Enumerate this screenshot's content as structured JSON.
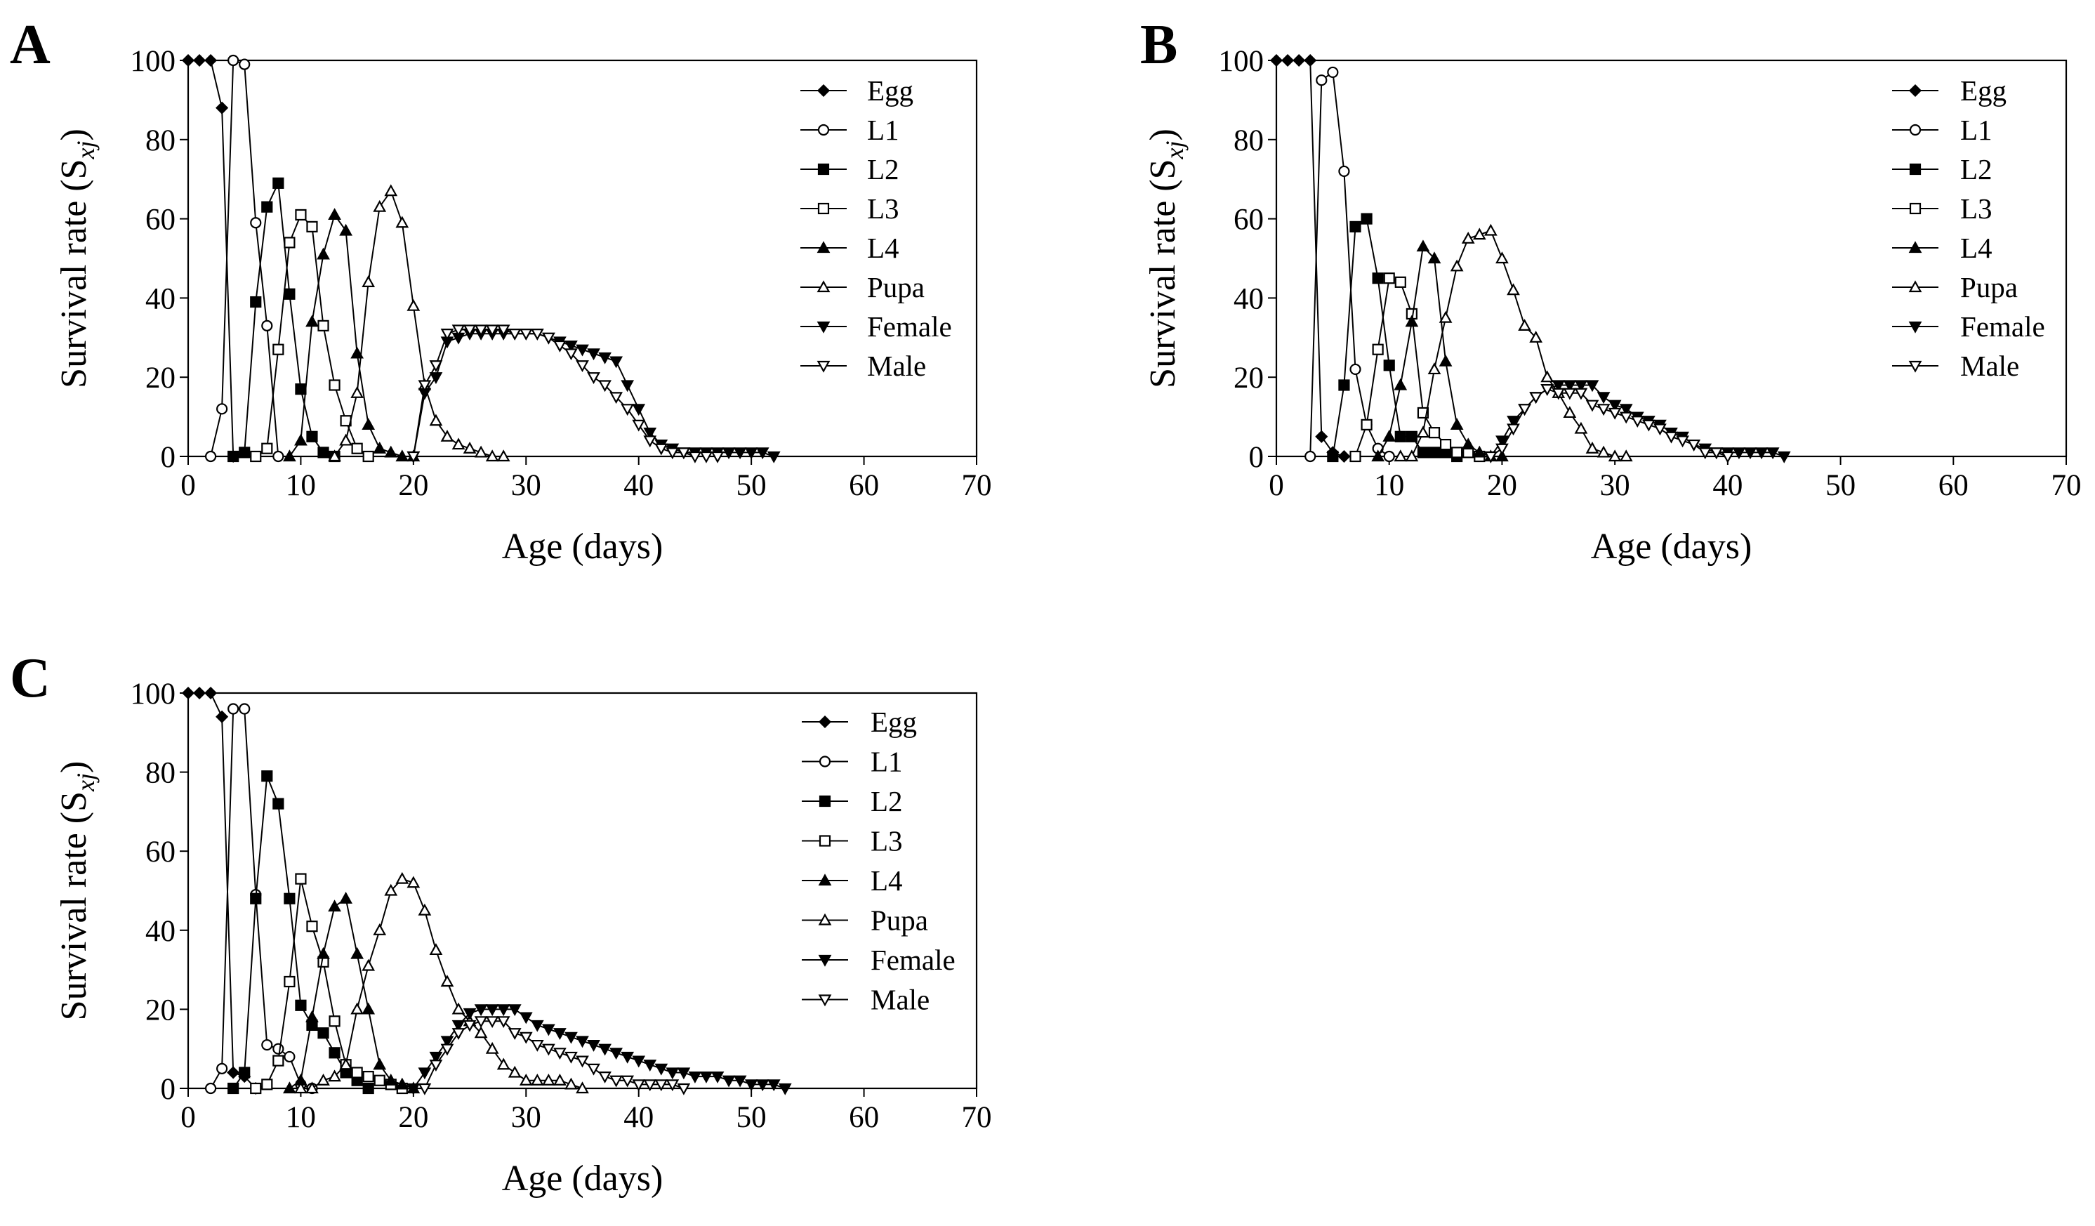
{
  "figure": {
    "legend_entries": [
      "Egg",
      "L1",
      "L2",
      "L3",
      "L4",
      "Pupa",
      "Female",
      "Male"
    ],
    "legend_markers": [
      "filled-diamond",
      "open-circle",
      "filled-square",
      "open-square",
      "filled-triangle",
      "open-triangle",
      "filled-down-triangle",
      "open-down-triangle"
    ]
  },
  "chart_data": [
    {
      "type": "line",
      "panel": "A",
      "xlabel": "Age (days)",
      "ylabel": "Survival rate (S",
      "ylabel_sub": "xj",
      "ylabel_close": ")",
      "xlim": [
        0,
        70
      ],
      "ylim": [
        0,
        100
      ],
      "xticks": [
        0,
        10,
        20,
        30,
        40,
        50,
        60,
        70
      ],
      "yticks": [
        0,
        20,
        40,
        60,
        80,
        100
      ],
      "legend_position": "top-right",
      "series": [
        {
          "name": "Egg",
          "marker": "filled-diamond",
          "x": [
            0,
            1,
            2,
            3,
            4
          ],
          "y": [
            100,
            100,
            100,
            88,
            0
          ]
        },
        {
          "name": "L1",
          "marker": "open-circle",
          "x": [
            2,
            3,
            4,
            5,
            6,
            7,
            8
          ],
          "y": [
            0,
            12,
            100,
            99,
            59,
            33,
            0
          ]
        },
        {
          "name": "L2",
          "marker": "filled-square",
          "x": [
            4,
            5,
            6,
            7,
            8,
            9,
            10,
            11,
            12,
            13
          ],
          "y": [
            0,
            1,
            39,
            63,
            69,
            41,
            17,
            5,
            1,
            0
          ]
        },
        {
          "name": "L3",
          "marker": "open-square",
          "x": [
            6,
            7,
            8,
            9,
            10,
            11,
            12,
            13,
            14,
            15,
            16
          ],
          "y": [
            0,
            2,
            27,
            54,
            61,
            58,
            33,
            18,
            9,
            2,
            0
          ]
        },
        {
          "name": "L4",
          "marker": "filled-triangle",
          "x": [
            9,
            10,
            11,
            12,
            13,
            14,
            15,
            16,
            17,
            18,
            19,
            20
          ],
          "y": [
            0,
            4,
            34,
            51,
            61,
            57,
            26,
            8,
            2,
            1,
            0,
            0
          ]
        },
        {
          "name": "Pupa",
          "marker": "open-triangle",
          "x": [
            13,
            14,
            15,
            16,
            17,
            18,
            19,
            20,
            21,
            22,
            23,
            24,
            25,
            26,
            27,
            28
          ],
          "y": [
            0,
            4,
            16,
            44,
            63,
            67,
            59,
            38,
            18,
            9,
            5,
            3,
            2,
            1,
            0,
            0
          ]
        },
        {
          "name": "Female",
          "marker": "filled-down-triangle",
          "x": [
            20,
            21,
            22,
            23,
            24,
            25,
            26,
            27,
            28,
            29,
            30,
            31,
            32,
            33,
            34,
            35,
            36,
            37,
            38,
            39,
            40,
            41,
            42,
            43,
            44,
            45,
            46,
            47,
            48,
            49,
            50,
            51,
            52
          ],
          "y": [
            0,
            16,
            20,
            29,
            30,
            31,
            31,
            31,
            31,
            31,
            31,
            31,
            30,
            29,
            28,
            27,
            26,
            25,
            24,
            18,
            12,
            6,
            3,
            2,
            1,
            1,
            1,
            1,
            1,
            1,
            1,
            1,
            0
          ]
        },
        {
          "name": "Male",
          "marker": "open-down-triangle",
          "x": [
            20,
            21,
            22,
            23,
            24,
            25,
            26,
            27,
            28,
            29,
            30,
            31,
            32,
            33,
            34,
            35,
            36,
            37,
            38,
            39,
            40,
            41,
            42,
            43,
            44,
            45,
            46,
            47
          ],
          "y": [
            0,
            18,
            23,
            31,
            32,
            32,
            32,
            32,
            32,
            31,
            31,
            31,
            30,
            28,
            26,
            23,
            20,
            18,
            15,
            12,
            8,
            4,
            2,
            1,
            1,
            0,
            0,
            0
          ]
        }
      ]
    },
    {
      "type": "line",
      "panel": "B",
      "xlabel": "Age (days)",
      "ylabel": "Survival rate  (S",
      "ylabel_sub": "xj",
      "ylabel_close": ")",
      "xlim": [
        0,
        70
      ],
      "ylim": [
        0,
        100
      ],
      "xticks": [
        0,
        10,
        20,
        30,
        40,
        50,
        60,
        70
      ],
      "yticks": [
        0,
        20,
        40,
        60,
        80,
        100
      ],
      "legend_position": "top-right",
      "series": [
        {
          "name": "Egg",
          "marker": "filled-diamond",
          "x": [
            0,
            1,
            2,
            3,
            4,
            5,
            6
          ],
          "y": [
            100,
            100,
            100,
            100,
            5,
            1,
            0
          ]
        },
        {
          "name": "L1",
          "marker": "open-circle",
          "x": [
            3,
            4,
            5,
            6,
            7,
            8,
            9,
            10
          ],
          "y": [
            0,
            95,
            97,
            72,
            22,
            8,
            2,
            0
          ]
        },
        {
          "name": "L2",
          "marker": "filled-square",
          "x": [
            5,
            6,
            7,
            8,
            9,
            10,
            11,
            12,
            13,
            14,
            15,
            16
          ],
          "y": [
            0,
            18,
            58,
            60,
            45,
            23,
            5,
            5,
            1,
            1,
            1,
            0
          ]
        },
        {
          "name": "L3",
          "marker": "open-square",
          "x": [
            7,
            8,
            9,
            10,
            11,
            12,
            13,
            14,
            15,
            16,
            17,
            18
          ],
          "y": [
            0,
            8,
            27,
            45,
            44,
            36,
            11,
            6,
            3,
            1,
            1,
            0
          ]
        },
        {
          "name": "L4",
          "marker": "filled-triangle",
          "x": [
            9,
            10,
            11,
            12,
            13,
            14,
            15,
            16,
            17,
            18,
            19,
            20
          ],
          "y": [
            0,
            5,
            18,
            34,
            53,
            50,
            24,
            8,
            3,
            1,
            0,
            0
          ]
        },
        {
          "name": "Pupa",
          "marker": "open-triangle",
          "x": [
            11,
            12,
            13,
            14,
            15,
            16,
            17,
            18,
            19,
            20,
            21,
            22,
            23,
            24,
            25,
            26,
            27,
            28,
            29,
            30,
            31
          ],
          "y": [
            0,
            0,
            6,
            22,
            35,
            48,
            55,
            56,
            57,
            50,
            42,
            33,
            30,
            20,
            16,
            11,
            7,
            2,
            1,
            0,
            0
          ]
        },
        {
          "name": "Female",
          "marker": "filled-down-triangle",
          "x": [
            19,
            20,
            21,
            22,
            23,
            24,
            25,
            26,
            27,
            28,
            29,
            30,
            31,
            32,
            33,
            34,
            35,
            36,
            37,
            38,
            39,
            40,
            41,
            42,
            43,
            44,
            45
          ],
          "y": [
            0,
            4,
            9,
            12,
            15,
            17,
            18,
            18,
            18,
            18,
            15,
            13,
            12,
            10,
            9,
            8,
            6,
            5,
            3,
            2,
            1,
            1,
            1,
            1,
            1,
            1,
            0
          ]
        },
        {
          "name": "Male",
          "marker": "open-down-triangle",
          "x": [
            19,
            20,
            21,
            22,
            23,
            24,
            25,
            26,
            27,
            28,
            29,
            30,
            31,
            32,
            33,
            34,
            35,
            36,
            37,
            38,
            39,
            40
          ],
          "y": [
            0,
            2,
            7,
            12,
            15,
            17,
            16,
            16,
            16,
            13,
            12,
            11,
            10,
            9,
            8,
            7,
            5,
            4,
            3,
            1,
            1,
            0
          ]
        }
      ]
    },
    {
      "type": "line",
      "panel": "C",
      "xlabel": "Age (days)",
      "ylabel": "Survival rate (S",
      "ylabel_sub": "xj",
      "ylabel_close": ")",
      "xlim": [
        0,
        70
      ],
      "ylim": [
        0,
        100
      ],
      "xticks": [
        0,
        10,
        20,
        30,
        40,
        50,
        60,
        70
      ],
      "yticks": [
        0,
        20,
        40,
        60,
        80,
        100
      ],
      "legend_position": "top-right",
      "series": [
        {
          "name": "Egg",
          "marker": "filled-diamond",
          "x": [
            0,
            1,
            2,
            3,
            4,
            5,
            6
          ],
          "y": [
            100,
            100,
            100,
            94,
            4,
            3,
            0
          ]
        },
        {
          "name": "L1",
          "marker": "open-circle",
          "x": [
            2,
            3,
            4,
            5,
            6,
            7,
            8,
            9,
            10,
            11
          ],
          "y": [
            0,
            5,
            96,
            96,
            49,
            11,
            10,
            8,
            1,
            0
          ]
        },
        {
          "name": "L2",
          "marker": "filled-square",
          "x": [
            4,
            5,
            6,
            7,
            8,
            9,
            10,
            11,
            12,
            13,
            14,
            15,
            16
          ],
          "y": [
            0,
            4,
            48,
            79,
            72,
            48,
            21,
            16,
            14,
            9,
            4,
            2,
            0
          ]
        },
        {
          "name": "L3",
          "marker": "open-square",
          "x": [
            6,
            7,
            8,
            9,
            10,
            11,
            12,
            13,
            14,
            15,
            16,
            17,
            18,
            19
          ],
          "y": [
            0,
            1,
            7,
            27,
            53,
            41,
            32,
            17,
            6,
            4,
            3,
            2,
            1,
            0
          ]
        },
        {
          "name": "L4",
          "marker": "filled-triangle",
          "x": [
            9,
            10,
            11,
            12,
            13,
            14,
            15,
            16,
            17,
            18,
            19,
            20
          ],
          "y": [
            0,
            2,
            18,
            34,
            46,
            48,
            34,
            20,
            6,
            2,
            1,
            0
          ]
        },
        {
          "name": "Pupa",
          "marker": "open-triangle",
          "x": [
            10,
            11,
            12,
            13,
            14,
            15,
            16,
            17,
            18,
            19,
            20,
            21,
            22,
            23,
            24,
            25,
            26,
            27,
            28,
            29,
            30,
            31,
            32,
            33,
            34,
            35
          ],
          "y": [
            0,
            0,
            2,
            3,
            6,
            20,
            31,
            40,
            50,
            53,
            52,
            45,
            35,
            27,
            20,
            17,
            14,
            10,
            6,
            4,
            2,
            2,
            2,
            2,
            1,
            0
          ]
        },
        {
          "name": "Female",
          "marker": "filled-down-triangle",
          "x": [
            20,
            21,
            22,
            23,
            24,
            25,
            26,
            27,
            28,
            29,
            30,
            31,
            32,
            33,
            34,
            35,
            36,
            37,
            38,
            39,
            40,
            41,
            42,
            43,
            44,
            45,
            46,
            47,
            48,
            49,
            50,
            51,
            52,
            53
          ],
          "y": [
            0,
            4,
            8,
            12,
            16,
            19,
            20,
            20,
            20,
            20,
            18,
            16,
            15,
            14,
            13,
            12,
            11,
            10,
            9,
            8,
            7,
            6,
            5,
            4,
            4,
            3,
            3,
            3,
            2,
            2,
            1,
            1,
            1,
            0
          ]
        },
        {
          "name": "Male",
          "marker": "open-down-triangle",
          "x": [
            21,
            22,
            23,
            24,
            25,
            26,
            27,
            28,
            29,
            30,
            31,
            32,
            33,
            34,
            35,
            36,
            37,
            38,
            39,
            40,
            41,
            42,
            43,
            44
          ],
          "y": [
            0,
            6,
            10,
            14,
            16,
            17,
            17,
            17,
            14,
            13,
            11,
            10,
            9,
            8,
            7,
            5,
            3,
            2,
            2,
            1,
            1,
            1,
            1,
            0
          ]
        }
      ]
    }
  ]
}
